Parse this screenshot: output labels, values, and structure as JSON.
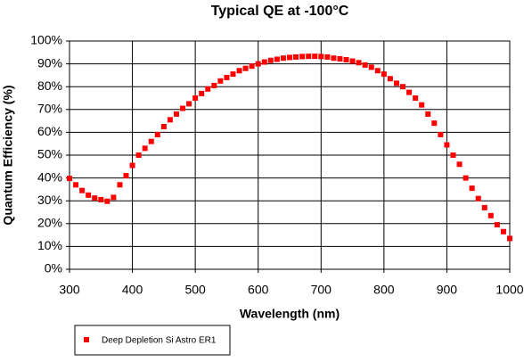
{
  "chart_data": {
    "type": "scatter",
    "title": "Typical QE at -100°C",
    "xlabel": "Wavelength (nm)",
    "ylabel": "Quantum Efficiency (%)",
    "series": [
      {
        "name": "Deep Depletion Si Astro ER1",
        "color": "#ff0000",
        "x": [
          300,
          310,
          320,
          330,
          340,
          350,
          360,
          370,
          380,
          390,
          400,
          410,
          420,
          430,
          440,
          450,
          460,
          470,
          480,
          490,
          500,
          510,
          520,
          530,
          540,
          550,
          560,
          570,
          580,
          590,
          600,
          610,
          620,
          630,
          640,
          650,
          660,
          670,
          680,
          690,
          700,
          710,
          720,
          730,
          740,
          750,
          760,
          770,
          780,
          790,
          800,
          810,
          820,
          830,
          840,
          850,
          860,
          870,
          880,
          890,
          900,
          910,
          920,
          930,
          940,
          950,
          960,
          970,
          980,
          990,
          1000
        ],
        "values": [
          39.8,
          37,
          34.5,
          32.5,
          31.2,
          30.5,
          29.8,
          31.5,
          37,
          41,
          45.5,
          50,
          53,
          56,
          59,
          62.5,
          65.5,
          68,
          70.5,
          72.5,
          75,
          77,
          79,
          80.5,
          82.5,
          84,
          85.5,
          87,
          88,
          89,
          90,
          90.8,
          91.5,
          92,
          92.5,
          92.8,
          93,
          93.2,
          93.3,
          93.3,
          93.2,
          93,
          92.5,
          92.2,
          91.8,
          91.2,
          90.5,
          89.5,
          88.5,
          87,
          85.5,
          83.5,
          81.5,
          80,
          77.5,
          75,
          72,
          68,
          64,
          59,
          54.5,
          50,
          46,
          40,
          35.5,
          31,
          27,
          23.5,
          19.5,
          16.5,
          13.5
        ]
      }
    ],
    "xlim": [
      300,
      1000
    ],
    "xticks": [
      300,
      400,
      500,
      600,
      700,
      800,
      900,
      1000
    ],
    "ylim": [
      0,
      100
    ],
    "yticks": [
      {
        "value": 0,
        "label": "0%"
      },
      {
        "value": 10,
        "label": "10%"
      },
      {
        "value": 20,
        "label": "20%"
      },
      {
        "value": 30,
        "label": "30%"
      },
      {
        "value": 40,
        "label": "40%"
      },
      {
        "value": 50,
        "label": "50%"
      },
      {
        "value": 60,
        "label": "60%"
      },
      {
        "value": 70,
        "label": "70%"
      },
      {
        "value": 80,
        "label": "80%"
      },
      {
        "value": 90,
        "label": "90%"
      },
      {
        "value": 100,
        "label": "100%"
      }
    ],
    "grid": true,
    "legend": "bottom-left"
  }
}
